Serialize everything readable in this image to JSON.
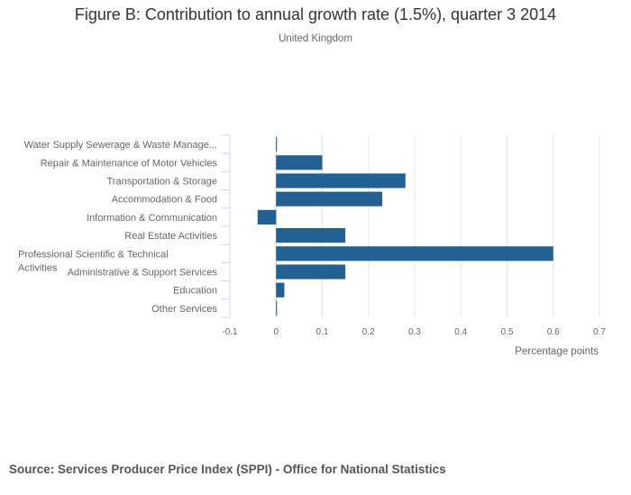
{
  "chart_data": {
    "type": "bar",
    "orientation": "horizontal",
    "title": "Figure B: Contribution to annual growth rate (1.5%), quarter 3 2014",
    "subtitle": "United Kingdom",
    "xlabel": "Percentage points",
    "ylabel": "",
    "xlim": [
      -0.1,
      0.7
    ],
    "x_ticks": [
      -0.1,
      0,
      0.1,
      0.2,
      0.3,
      0.4,
      0.5,
      0.6,
      0.7
    ],
    "x_tick_labels": [
      "-0.1",
      "0",
      "0.1",
      "0.2",
      "0.3",
      "0.4",
      "0.5",
      "0.6",
      "0.7"
    ],
    "grid": true,
    "legend": "none",
    "bar_color": "#236192",
    "categories": [
      "Water Supply Sewerage & Waste Manage...",
      "Repair & Maintenance of Motor Vehicles",
      "Transportation & Storage",
      "Accommodation & Food",
      "Information & Communication",
      "Real Estate Activities",
      "Professional Scientific & Technical Activities",
      "Administrative & Support Services",
      "Education",
      "Other Services"
    ],
    "category_label_lines": [
      [
        "Water Supply Sewerage & Waste Manage..."
      ],
      [
        "Repair & Maintenance of Motor Vehicles"
      ],
      [
        "Transportation & Storage"
      ],
      [
        "Accommodation & Food"
      ],
      [
        "Information & Communication"
      ],
      [
        "Real Estate Activities"
      ],
      [
        "Professional Scientific & Technical",
        "Activities"
      ],
      [
        "Administrative & Support Services"
      ],
      [
        "Education"
      ],
      [
        "Other Services"
      ]
    ],
    "values": [
      0.002,
      0.1,
      0.28,
      0.23,
      -0.04,
      0.15,
      0.6,
      0.15,
      0.018,
      0.002
    ]
  },
  "source": "Source: Services Producer Price Index (SPPI) - Office for National Statistics"
}
